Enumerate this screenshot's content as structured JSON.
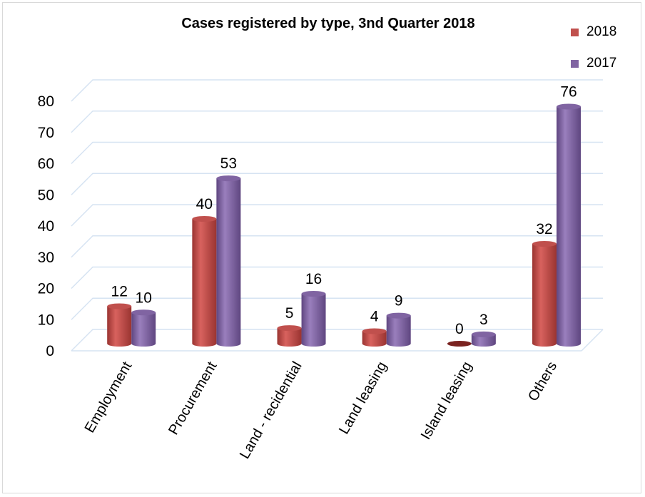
{
  "chart_data": {
    "type": "bar",
    "title": "Cases registered by type, 3nd Quarter 2018",
    "categories": [
      "Employment",
      "Procurement",
      "Land - recidential",
      "Land leasing",
      "Island leasing",
      "Others"
    ],
    "series": [
      {
        "name": "2018",
        "values": [
          12,
          40,
          5,
          4,
          0,
          32
        ],
        "color": "#c0504d"
      },
      {
        "name": "2017",
        "values": [
          10,
          53,
          16,
          9,
          3,
          76
        ],
        "color": "#8064a2"
      }
    ],
    "ylim": [
      0,
      80
    ],
    "yticks": [
      0,
      10,
      20,
      30,
      40,
      50,
      60,
      70,
      80
    ],
    "grid": true,
    "legend_position": "top-right",
    "style": "3d-cylinder"
  }
}
